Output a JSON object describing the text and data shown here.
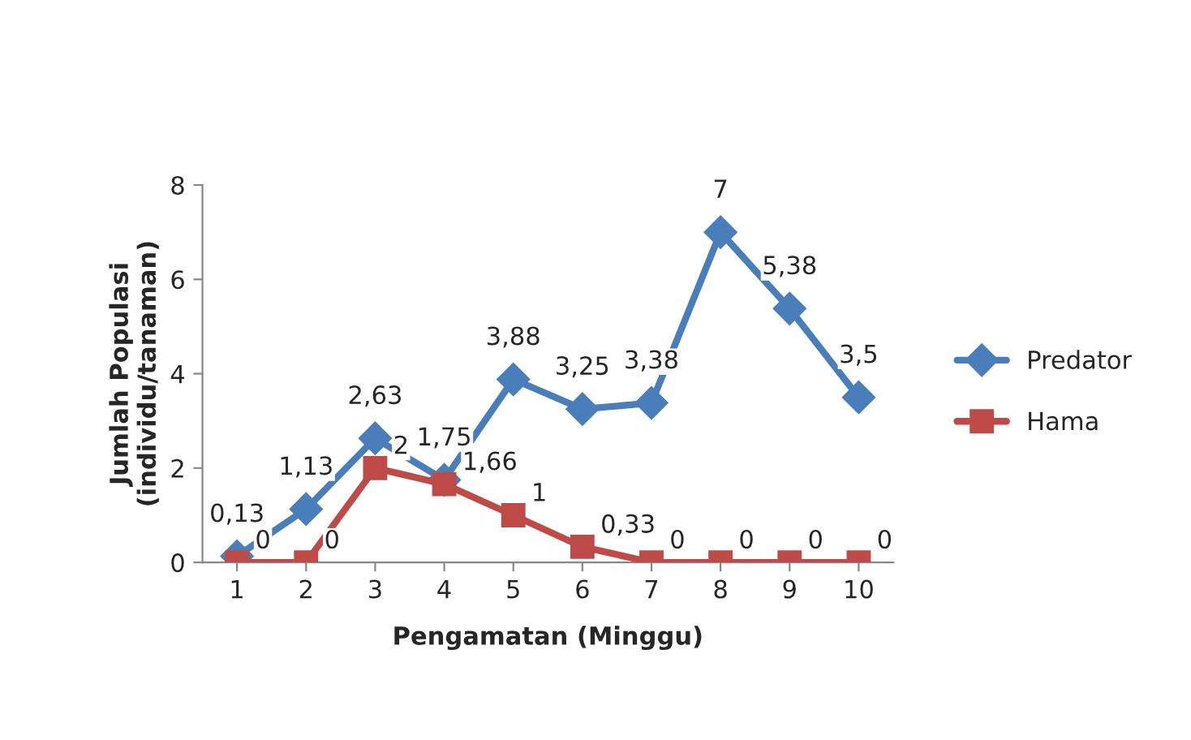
{
  "chart_data": {
    "type": "line",
    "xlabel": "Pengamatan (Minggu)",
    "ylabel": "Jumlah Populasi\n(individu/tanaman)",
    "categories": [
      "1",
      "2",
      "3",
      "4",
      "5",
      "6",
      "7",
      "8",
      "9",
      "10"
    ],
    "series": [
      {
        "name": "Predator",
        "color": "#4a7ebb",
        "marker": "diamond",
        "values": [
          0.13,
          1.13,
          2.63,
          1.75,
          3.88,
          3.25,
          3.38,
          7,
          5.38,
          3.5
        ],
        "value_labels": [
          "0,13",
          "1,13",
          "2,63",
          "1,75",
          "3,88",
          "3,25",
          "3,38",
          "7",
          "5,38",
          "3,5"
        ]
      },
      {
        "name": "Hama",
        "color": "#be4b48",
        "marker": "square",
        "values": [
          0,
          0,
          2,
          1.66,
          1,
          0.33,
          0,
          0,
          0,
          0
        ],
        "value_labels": [
          "0",
          "0",
          "2",
          "1,66",
          "1",
          "0,33",
          "0",
          "0",
          "0",
          "0"
        ]
      }
    ],
    "ylim": [
      0,
      8
    ],
    "yticks": [
      0,
      2,
      4,
      6,
      8
    ],
    "grid": false,
    "legend": "right"
  }
}
